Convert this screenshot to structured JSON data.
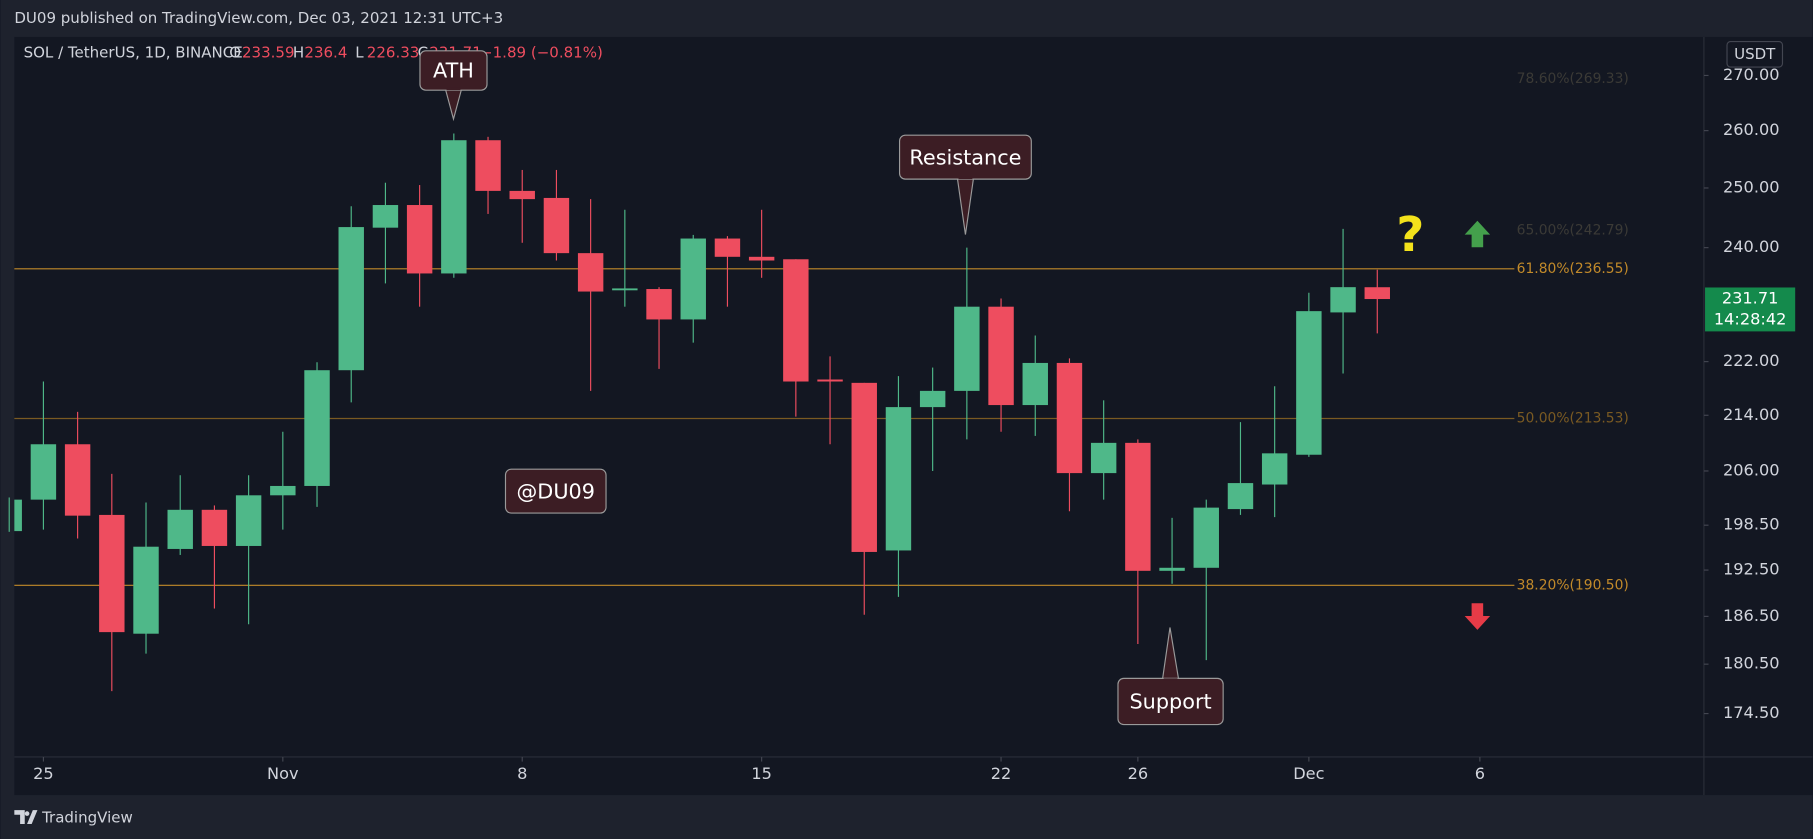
{
  "chart_data": {
    "type": "candlestick",
    "header": "DU09 published on TradingView.com, Dec 03, 2021 12:31 UTC+3",
    "symbol": "SOL / TetherUS, 1D, BINANCE",
    "ohlc_letters": [
      "O",
      "H",
      "L",
      "C"
    ],
    "change": "−1.89 (−0.81%)",
    "currency": "USDT",
    "countdown": "14:28:42",
    "brand": "TradingView",
    "up_color": "#4fb889",
    "down_color": "#ee4d5f",
    "log_scale": true,
    "x": [
      0,
      1,
      2,
      3,
      4,
      5,
      6,
      7,
      8,
      9,
      10,
      11,
      12,
      13,
      14,
      15,
      16,
      17,
      18,
      19,
      20,
      21,
      22,
      23,
      24,
      25,
      26,
      27,
      28,
      29,
      30,
      31,
      32,
      33,
      34,
      35,
      36,
      37,
      38,
      39,
      40
    ],
    "open": [
      197.7,
      202.0,
      209.8,
      199.9,
      184.3,
      195.3,
      200.6,
      195.7,
      202.6,
      203.9,
      220.7,
      243.3,
      247.1,
      235.8,
      258.3,
      249.5,
      248.3,
      239.1,
      233.1,
      233.3,
      228.5,
      241.5,
      238.5,
      238.1,
      219.3,
      218.8,
      195.1,
      215.2,
      217.6,
      230.5,
      215.5,
      221.8,
      205.7,
      210.0,
      192.4,
      192.8,
      200.7,
      204.1,
      208.3,
      229.6,
      233.59
    ],
    "high": [
      202.3,
      219.0,
      214.5,
      205.6,
      201.6,
      205.4,
      201.2,
      205.4,
      211.6,
      221.9,
      246.9,
      250.9,
      250.5,
      259.5,
      258.9,
      253.1,
      253.1,
      248.1,
      246.3,
      233.6,
      242.1,
      241.9,
      246.3,
      238.1,
      222.8,
      218.8,
      219.8,
      221.1,
      240.0,
      231.8,
      226.0,
      222.5,
      216.2,
      210.5,
      199.5,
      202.0,
      213.0,
      218.3,
      232.7,
      243.1,
      236.4
    ],
    "low": [
      197.6,
      197.9,
      196.7,
      177.2,
      181.8,
      194.5,
      187.5,
      185.5,
      197.9,
      201.0,
      215.9,
      234.2,
      230.5,
      235.1,
      245.6,
      240.8,
      237.9,
      217.6,
      230.5,
      220.9,
      224.9,
      230.5,
      235.1,
      213.8,
      209.8,
      186.7,
      189.0,
      206.0,
      210.5,
      211.6,
      211.0,
      200.4,
      202.0,
      183.0,
      190.7,
      181.0,
      199.9,
      199.6,
      208.0,
      220.2,
      226.33
    ],
    "close": [
      202.0,
      209.8,
      199.8,
      184.5,
      195.6,
      200.6,
      195.7,
      202.6,
      203.9,
      220.7,
      243.4,
      247.1,
      235.8,
      258.3,
      249.5,
      248.1,
      239.1,
      232.9,
      233.4,
      228.5,
      241.5,
      238.5,
      237.9,
      219.0,
      219.0,
      194.9,
      215.2,
      217.6,
      230.5,
      215.5,
      221.8,
      205.7,
      210.0,
      192.4,
      192.8,
      200.9,
      204.3,
      208.5,
      229.8,
      233.6,
      231.71
    ],
    "xlim": [
      0.15,
      49.55
    ],
    "ylim": [
      169.4,
      277.2
    ],
    "xticks": [
      {
        "value": 1,
        "label": "25"
      },
      {
        "value": 8,
        "label": "Nov"
      },
      {
        "value": 15,
        "label": "8"
      },
      {
        "value": 22,
        "label": "15"
      },
      {
        "value": 29,
        "label": "22"
      },
      {
        "value": 33,
        "label": "26"
      },
      {
        "value": 38,
        "label": "Dec"
      },
      {
        "value": 43,
        "label": "6"
      }
    ],
    "yticks": [
      {
        "value": 270,
        "label": "270.00"
      },
      {
        "value": 260,
        "label": "260.00"
      },
      {
        "value": 250,
        "label": "250.00"
      },
      {
        "value": 240,
        "label": "240.00"
      },
      {
        "value": 222,
        "label": "222.00"
      },
      {
        "value": 214,
        "label": "214.00"
      },
      {
        "value": 206,
        "label": "206.00"
      },
      {
        "value": 198.5,
        "label": "198.50"
      },
      {
        "value": 192.5,
        "label": "192.50"
      },
      {
        "value": 186.5,
        "label": "186.50"
      },
      {
        "value": 180.5,
        "label": "180.50"
      },
      {
        "value": 174.5,
        "label": "174.50"
      }
    ],
    "fib_levels": [
      {
        "value": 269.33,
        "label": "78.60%(269.33)",
        "color": "#3b3a36",
        "line": false
      },
      {
        "value": 242.79,
        "label": "65.00%(242.79)",
        "color": "#3b3a36",
        "line": false
      },
      {
        "value": 236.55,
        "label": "61.80%(236.55)",
        "color": "#c28a2a",
        "line": true
      },
      {
        "value": 213.53,
        "label": "50.00%(213.53)",
        "color": "#7a5a22",
        "line": true
      },
      {
        "value": 190.5,
        "label": "38.20%(190.50)",
        "color": "#c28a2a",
        "line": true
      }
    ],
    "annotations": [
      "ATH",
      "Resistance",
      "Support",
      "@DU09",
      "?"
    ]
  }
}
